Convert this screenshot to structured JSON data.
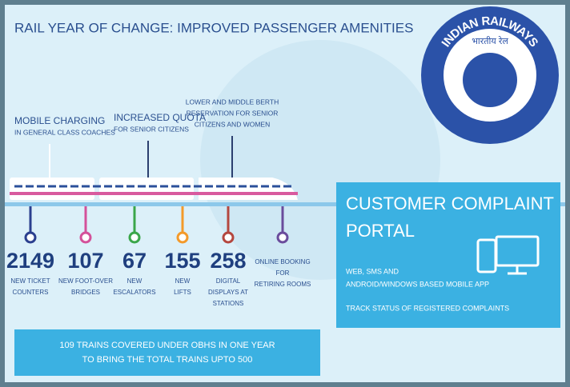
{
  "title": "RAIL YEAR OF CHANGE: IMPROVED PASSENGER AMENITIES",
  "logo": {
    "name": "INDIAN RAILWAYS",
    "hindi": "भारतीय रेल"
  },
  "top_items": [
    {
      "lines": [
        "MOBILE CHARGING",
        "IN GENERAL CLASS COACHES"
      ]
    },
    {
      "lines": [
        "INCREASED QUOTA",
        "FOR SENIOR CITIZENS"
      ]
    },
    {
      "lines": [
        "LOWER AND MIDDLE BERTH",
        "RESERVATION FOR SENIOR",
        "CITIZENS AND WOMEN"
      ]
    }
  ],
  "stats": [
    {
      "value": 2149,
      "lines": [
        "NEW TICKET",
        "COUNTERS"
      ]
    },
    {
      "value": 107,
      "lines": [
        "NEW FOOT-OVER",
        "BRIDGES"
      ]
    },
    {
      "value": 67,
      "lines": [
        "NEW",
        "ESCALATORS"
      ]
    },
    {
      "value": 155,
      "lines": [
        "NEW",
        "LIFTS"
      ]
    },
    {
      "value": 258,
      "lines": [
        "DIGITAL",
        "DISPLAYS AT",
        "STATIONS"
      ]
    },
    {
      "lines": [
        "ONLINE BOOKING",
        "FOR",
        "RETIRING ROOMS"
      ]
    }
  ],
  "portal": {
    "title": [
      "CUSTOMER COMPLAINT",
      "PORTAL"
    ],
    "lines": [
      "WEB, SMS AND",
      "ANDROID/WINDOWS BASED MOBILE APP",
      "TRACK STATUS OF REGISTERED COMPLAINTS"
    ]
  },
  "banner": [
    "109 TRAINS COVERED UNDER OBHS IN ONE YEAR",
    "TO BRING THE TOTAL TRAINS UPTO 500"
  ]
}
